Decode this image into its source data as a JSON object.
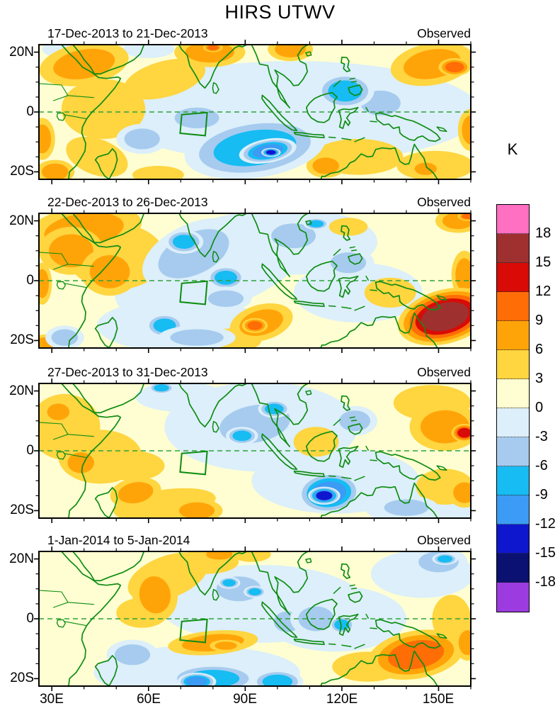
{
  "figure": {
    "title": "HIRS UTWV",
    "units_label": "K",
    "source_label": "Observed"
  },
  "axes": {
    "lat_ticks": [
      "20N",
      "0",
      "20S"
    ],
    "lon_ticks": [
      "30E",
      "60E",
      "90E",
      "120E",
      "150E"
    ]
  },
  "colorbar": {
    "units": "K",
    "tick_labels": [
      "18",
      "15",
      "12",
      "9",
      "6",
      "3",
      "0",
      "-3",
      "-6",
      "-9",
      "-12",
      "-15",
      "-18"
    ],
    "colors_top_to_bottom": [
      "#FF6FC2",
      "#9E312F",
      "#D80B06",
      "#FF6D07",
      "#FFA408",
      "#FFD540",
      "#FEFED2",
      "#DCEFFA",
      "#A6CBEF",
      "#16BCF2",
      "#3C9BF4",
      "#0F17CE",
      "#0B1170",
      "#9C3BDF"
    ]
  },
  "chart_data": {
    "type": "heatmap",
    "title": "HIRS UTWV",
    "units": "K",
    "legend_position": "right",
    "lon_range": [
      26,
      160
    ],
    "lat_range": [
      -22.5,
      22.5
    ],
    "contour_interval_k": 3,
    "background_band": "#FEFED2",
    "positive_band_colors": [
      "#FFD540",
      "#FFA408",
      "#FF6D07",
      "#D80B06",
      "#9E312F",
      "#FF6FC2"
    ],
    "negative_band_colors": [
      "#DCEFFA",
      "#A6CBEF",
      "#16BCF2",
      "#3C9BF4",
      "#0F17CE",
      "#0B1170",
      "#9C3BDF"
    ],
    "map_line_color": "#0E8C12",
    "equator_line_color": "#2FA23A",
    "study_box_lonlat": [
      [
        70.3,
        -0.9
      ],
      [
        78.2,
        -0.2
      ],
      [
        77.6,
        -7.9
      ],
      [
        69.8,
        -7.1
      ]
    ],
    "features_format": "[lon_e, lat_n, radius_lon_deg, radius_lat_deg, rotation_deg, peak_anomaly_k]",
    "panels": [
      {
        "label": "17-Dec-2013 to 21-Dec-2013",
        "source": "Observed",
        "features": [
          [
            105,
            0,
            58,
            17,
            0,
            -1
          ],
          [
            34,
            21,
            7,
            3,
            0,
            -1
          ],
          [
            60,
            21,
            8,
            3,
            0,
            -1
          ],
          [
            46,
            1,
            13,
            10,
            0,
            4
          ],
          [
            65,
            11,
            13,
            6,
            -15,
            4
          ],
          [
            40,
            16,
            14,
            7,
            -10,
            7
          ],
          [
            27,
            -9,
            4,
            7,
            0,
            7
          ],
          [
            31,
            -20,
            6,
            4,
            0,
            7
          ],
          [
            44,
            -15,
            10,
            6,
            20,
            4
          ],
          [
            79,
            20,
            11,
            5,
            0,
            8
          ],
          [
            80,
            21.5,
            3,
            1.5,
            0,
            10
          ],
          [
            104,
            21,
            7,
            4,
            0,
            7
          ],
          [
            148,
            16,
            13,
            7,
            -10,
            7
          ],
          [
            155,
            15,
            5,
            3,
            0,
            10
          ],
          [
            160,
            -6,
            4,
            7,
            0,
            7
          ],
          [
            149,
            -18,
            12,
            5,
            0,
            5
          ],
          [
            146,
            -19,
            5,
            3,
            0,
            7
          ],
          [
            125,
            -15,
            14,
            6,
            0,
            4
          ],
          [
            115,
            -18,
            6,
            4,
            0,
            7
          ],
          [
            63,
            -21,
            8,
            3,
            0,
            4
          ],
          [
            58,
            -9,
            8,
            5,
            0,
            -4
          ],
          [
            75,
            -2,
            10,
            5,
            0,
            -4
          ],
          [
            132,
            3,
            9,
            6,
            0,
            -4
          ],
          [
            121,
            7,
            9,
            6,
            0,
            -7
          ],
          [
            93,
            -12,
            22,
            10,
            -8,
            -8
          ],
          [
            97,
            -13,
            9,
            4,
            -10,
            -11
          ],
          [
            98,
            -13.5,
            3,
            1.5,
            0,
            -13
          ]
        ]
      },
      {
        "label": "22-Dec-2013 to 26-Dec-2013",
        "source": "Observed",
        "features": [
          [
            80,
            5,
            32,
            15,
            -20,
            -1
          ],
          [
            105,
            13,
            26,
            11,
            0,
            -1
          ],
          [
            70,
            -15,
            26,
            9,
            0,
            -1
          ],
          [
            125,
            -4,
            20,
            10,
            0,
            -1
          ],
          [
            50,
            8,
            15,
            11,
            0,
            4
          ],
          [
            40,
            17,
            18,
            8,
            -8,
            8
          ],
          [
            36,
            10,
            10,
            8,
            0,
            7
          ],
          [
            48,
            3,
            9,
            8,
            0,
            6
          ],
          [
            27,
            -1,
            3,
            7,
            0,
            8
          ],
          [
            28,
            -21,
            5,
            3,
            0,
            7
          ],
          [
            85,
            -20,
            10,
            4,
            0,
            4
          ],
          [
            95,
            -14,
            10,
            6,
            -15,
            8
          ],
          [
            93,
            -15,
            4,
            2.5,
            0,
            10
          ],
          [
            122,
            18,
            6,
            3,
            0,
            4
          ],
          [
            135,
            -4,
            8,
            5,
            0,
            4
          ],
          [
            156,
            20,
            7,
            4,
            0,
            8
          ],
          [
            159,
            21.5,
            3,
            1.5,
            0,
            10
          ],
          [
            158,
            2,
            4,
            8,
            0,
            7
          ],
          [
            152,
            -12,
            15,
            9,
            -15,
            17
          ],
          [
            34,
            -19,
            6,
            4,
            0,
            -5
          ],
          [
            74,
            9,
            17,
            10,
            -25,
            -5
          ],
          [
            71,
            13,
            6,
            4,
            0,
            -8
          ],
          [
            84,
            1,
            6,
            4,
            0,
            -7
          ],
          [
            65,
            -15,
            6,
            4,
            0,
            -8
          ],
          [
            75,
            -19,
            12,
            4,
            0,
            -4
          ],
          [
            105,
            15,
            10,
            6,
            0,
            -4
          ],
          [
            112,
            19,
            4,
            2,
            0,
            -7
          ],
          [
            122,
            6,
            8,
            5,
            0,
            -4
          ],
          [
            84,
            -6,
            8,
            4,
            0,
            -4
          ]
        ]
      },
      {
        "label": "27-Dec-2013 to 31-Dec-2013",
        "source": "Observed",
        "features": [
          [
            95,
            8,
            30,
            15,
            0,
            -1
          ],
          [
            118,
            -10,
            26,
            11,
            0,
            -1
          ],
          [
            70,
            18,
            14,
            5,
            0,
            -1
          ],
          [
            145,
            -19,
            18,
            6,
            0,
            -1
          ],
          [
            45,
            -2,
            13,
            9,
            0,
            4
          ],
          [
            34,
            8,
            11,
            11,
            0,
            4
          ],
          [
            32,
            13,
            5,
            4,
            0,
            7
          ],
          [
            39,
            -4,
            6,
            5,
            0,
            7
          ],
          [
            65,
            -18,
            16,
            5,
            -8,
            4
          ],
          [
            56,
            -14,
            8,
            5,
            -10,
            8
          ],
          [
            75,
            -20,
            8,
            4,
            0,
            8
          ],
          [
            55,
            -5,
            10,
            5,
            0,
            4
          ],
          [
            112,
            3,
            7,
            5,
            0,
            4
          ],
          [
            148,
            16,
            12,
            6,
            0,
            5
          ],
          [
            152,
            8,
            11,
            8,
            0,
            8
          ],
          [
            158,
            6,
            4,
            3,
            0,
            13
          ],
          [
            152,
            -12,
            9,
            6,
            0,
            4
          ],
          [
            158,
            -14,
            5,
            5,
            0,
            8
          ],
          [
            64,
            21,
            4,
            2,
            0,
            -7
          ],
          [
            124,
            10,
            7,
            5,
            0,
            -4
          ],
          [
            93,
            9,
            16,
            9,
            -10,
            -5
          ],
          [
            89,
            5,
            5,
            3,
            0,
            -8
          ],
          [
            99,
            14,
            5,
            3,
            0,
            -8
          ],
          [
            140,
            -19,
            10,
            4,
            0,
            -4
          ],
          [
            116,
            -14,
            10,
            7,
            -5,
            -9
          ],
          [
            114.5,
            -15,
            5,
            3,
            0,
            -14
          ]
        ]
      },
      {
        "label": "1-Jan-2014 to 5-Jan-2014",
        "source": "Observed",
        "features": [
          [
            95,
            5,
            32,
            13,
            0,
            -1
          ],
          [
            75,
            -18,
            32,
            9,
            0,
            -1
          ],
          [
            118,
            0,
            22,
            11,
            0,
            -1
          ],
          [
            145,
            15,
            16,
            8,
            0,
            -1
          ],
          [
            66,
            14,
            13,
            7,
            -20,
            4
          ],
          [
            58,
            2,
            8,
            5,
            0,
            4
          ],
          [
            62,
            8,
            7,
            9,
            -10,
            7
          ],
          [
            78,
            19,
            10,
            4,
            0,
            4
          ],
          [
            82,
            21.5,
            6,
            2.5,
            0,
            7
          ],
          [
            92,
            21.5,
            6,
            2.5,
            0,
            4
          ],
          [
            80,
            -8,
            14,
            4,
            -5,
            7
          ],
          [
            84,
            -9,
            5,
            2,
            0,
            8
          ],
          [
            128,
            -16,
            11,
            5,
            0,
            4
          ],
          [
            154,
            0,
            6,
            8,
            0,
            4
          ],
          [
            143,
            -12,
            15,
            8,
            -10,
            10
          ],
          [
            159,
            -8,
            4,
            6,
            0,
            7
          ],
          [
            55,
            -12,
            8,
            5,
            0,
            -4
          ],
          [
            88,
            10,
            10,
            6,
            0,
            -5
          ],
          [
            85,
            12,
            3.5,
            2,
            0,
            -8
          ],
          [
            93,
            9,
            3.5,
            2,
            0,
            -8
          ],
          [
            103,
            -1,
            6,
            5,
            0,
            -4
          ],
          [
            112,
            0,
            8,
            6,
            0,
            -4
          ],
          [
            120,
            -2,
            4,
            3,
            0,
            -8
          ],
          [
            150,
            19,
            9,
            5,
            0,
            -5
          ],
          [
            152,
            20,
            4,
            2,
            0,
            -8
          ],
          [
            80,
            -20,
            14,
            5,
            0,
            -7
          ],
          [
            75,
            -21,
            6,
            3,
            0,
            -10
          ],
          [
            100,
            -21,
            8,
            4,
            0,
            -7
          ]
        ]
      }
    ]
  }
}
